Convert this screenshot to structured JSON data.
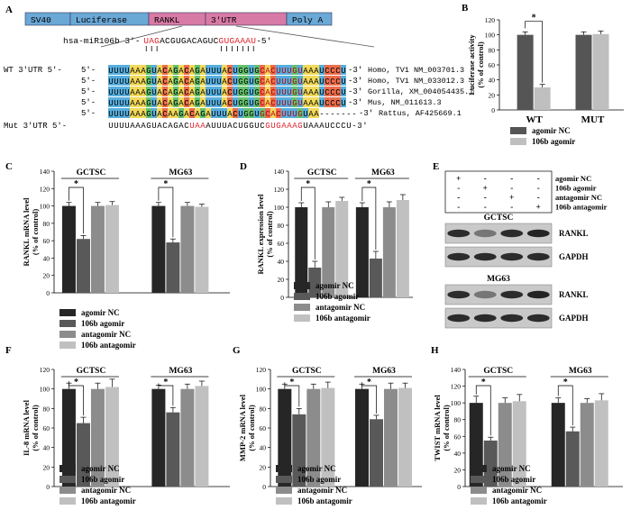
{
  "panels": {
    "A": "A",
    "B": "B",
    "C": "C",
    "D": "D",
    "E": "E",
    "F": "F",
    "G": "G",
    "H": "H"
  },
  "construct": {
    "segments": [
      {
        "label": "SV40",
        "color": "#6aa8d6"
      },
      {
        "label": "Luciferase",
        "color": "#6aa8d6"
      },
      {
        "label": "RANKL",
        "color": "#d87aa6"
      },
      {
        "label": "3'UTR",
        "color": "#d87aa6"
      },
      {
        "label": "Poly A",
        "color": "#6aa8d6"
      }
    ]
  },
  "mirna": {
    "prefix": "hsa-miR106b 3'-",
    "seq": "UAGACGUGACAGUCGUGAAAU",
    "suffix": "-5'"
  },
  "alignment": {
    "wt_label": "WT 3'UTR 5'-",
    "mut_label": "Mut 3'UTR 5'-",
    "rows": [
      {
        "prefix": "5'-",
        "seq": "UUUUAAAGUACAGACAGAUUUACUGGUGCACUUUGUAAAUCCCU",
        "end": "-3'",
        "species": "Homo, TV1 NM_003701.3"
      },
      {
        "prefix": "5'-",
        "seq": "UUUUAAAGUACAGACAGAUUUACUGGUGCACUUUGUAAAUCCCU",
        "end": "-3'",
        "species": "Homo, TV1 NM_033012.3"
      },
      {
        "prefix": "5'-",
        "seq": "UUUUAAAGUACAGACAGAUUUACUGGUGCACUUUGUAAAUCCCU",
        "end": "-3'",
        "species": "Gorilla, XM_004054435.1"
      },
      {
        "prefix": "5'-",
        "seq": "UUUUAAAGUACAGACAGAUUUACUGGUGCACUUUGUAAAUCCCU",
        "end": "-3'",
        "species": "Mus, NM_011613.3"
      },
      {
        "prefix": "5'-",
        "seq": "UUUUAAAGUACAAGACAGAUUUACUGGUGCACUUUGUAA-------",
        "end": "-3'",
        "species": "Rattus, AF425669.1"
      }
    ],
    "mut_seq": "UUUUAAAGUACAGACUAAAUUUACUGGUCGUGAAAGUAAAUCCCU-3'"
  },
  "chart_data": [
    {
      "panel": "B",
      "type": "bar",
      "ylabel": "Luciferase activity\n(% of control)",
      "ylim": [
        0,
        120
      ],
      "yticks": [
        0,
        20,
        40,
        60,
        80,
        100,
        120
      ],
      "groups": [
        "WT",
        "MUT"
      ],
      "series": [
        {
          "name": "agomir NC",
          "color": "#555555",
          "values": [
            100,
            100
          ],
          "errors": [
            4,
            4
          ]
        },
        {
          "name": "106b agomir",
          "color": "#bfbfbf",
          "values": [
            30,
            101
          ],
          "errors": [
            4,
            4
          ]
        }
      ],
      "significance": [
        {
          "group": 0,
          "label": "*"
        }
      ]
    },
    {
      "panel": "C",
      "type": "bar",
      "ylabel": "RANKL mRNA level\n(% of control)",
      "ylim": [
        0,
        140
      ],
      "yticks": [
        0,
        20,
        40,
        60,
        80,
        100,
        120,
        140
      ],
      "groups": [
        "GCTSC",
        "MG63"
      ],
      "series": [
        {
          "name": "agomir NC",
          "color": "#262626",
          "values": [
            100,
            100
          ],
          "errors": [
            4,
            4
          ]
        },
        {
          "name": "106b agomir",
          "color": "#595959",
          "values": [
            62,
            58
          ],
          "errors": [
            4,
            4
          ]
        },
        {
          "name": "antagomir NC",
          "color": "#8c8c8c",
          "values": [
            100,
            100
          ],
          "errors": [
            4,
            4
          ]
        },
        {
          "name": "106b antagomir",
          "color": "#c0c0c0",
          "values": [
            101,
            99
          ],
          "errors": [
            4,
            3
          ]
        }
      ],
      "significance": [
        {
          "group": 0,
          "label": "*"
        },
        {
          "group": 1,
          "label": "*"
        }
      ]
    },
    {
      "panel": "D",
      "type": "bar",
      "ylabel": "RANKL expression level\n(% of control)",
      "ylim": [
        0,
        140
      ],
      "yticks": [
        0,
        20,
        40,
        60,
        80,
        100,
        120,
        140
      ],
      "groups": [
        "GCTSC",
        "MG63"
      ],
      "series": [
        {
          "name": "agomir NC",
          "color": "#262626",
          "values": [
            100,
            100
          ],
          "errors": [
            5,
            5
          ]
        },
        {
          "name": "106b agomir",
          "color": "#595959",
          "values": [
            33,
            43
          ],
          "errors": [
            7,
            8
          ]
        },
        {
          "name": "antagomir NC",
          "color": "#8c8c8c",
          "values": [
            100,
            100
          ],
          "errors": [
            6,
            6
          ]
        },
        {
          "name": "106b antagomir",
          "color": "#c0c0c0",
          "values": [
            107,
            108
          ],
          "errors": [
            4,
            6
          ]
        }
      ],
      "significance": [
        {
          "group": 0,
          "label": "*"
        },
        {
          "group": 1,
          "label": "*"
        }
      ]
    },
    {
      "panel": "F",
      "type": "bar",
      "ylabel": "IL-8 mRNA level\n(% of control)",
      "ylim": [
        0,
        120
      ],
      "yticks": [
        0,
        20,
        40,
        60,
        80,
        100,
        120
      ],
      "groups": [
        "GCTSC",
        "MG63"
      ],
      "series": [
        {
          "name": "agomir NC",
          "color": "#262626",
          "values": [
            100,
            100
          ],
          "errors": [
            6,
            4
          ]
        },
        {
          "name": "106b agomir",
          "color": "#595959",
          "values": [
            65,
            76
          ],
          "errors": [
            6,
            5
          ]
        },
        {
          "name": "antagomir NC",
          "color": "#8c8c8c",
          "values": [
            100,
            100
          ],
          "errors": [
            6,
            5
          ]
        },
        {
          "name": "106b antagomir",
          "color": "#c0c0c0",
          "values": [
            102,
            103
          ],
          "errors": [
            8,
            5
          ]
        }
      ],
      "significance": [
        {
          "group": 0,
          "label": "*"
        },
        {
          "group": 1,
          "label": "*"
        }
      ]
    },
    {
      "panel": "G",
      "type": "bar",
      "ylabel": "MMP-2 mRNA level\n(% of control)",
      "ylim": [
        0,
        120
      ],
      "yticks": [
        0,
        20,
        40,
        60,
        80,
        100,
        120
      ],
      "groups": [
        "GCTSC",
        "MG63"
      ],
      "series": [
        {
          "name": "agomir NC",
          "color": "#262626",
          "values": [
            100,
            100
          ],
          "errors": [
            5,
            5
          ]
        },
        {
          "name": "106b agomir",
          "color": "#595959",
          "values": [
            74,
            69
          ],
          "errors": [
            6,
            4
          ]
        },
        {
          "name": "antagomir NC",
          "color": "#8c8c8c",
          "values": [
            100,
            100
          ],
          "errors": [
            5,
            6
          ]
        },
        {
          "name": "106b antagomir",
          "color": "#c0c0c0",
          "values": [
            101,
            101
          ],
          "errors": [
            6,
            5
          ]
        }
      ],
      "significance": [
        {
          "group": 0,
          "label": "*"
        },
        {
          "group": 1,
          "label": "*"
        }
      ]
    },
    {
      "panel": "H",
      "type": "bar",
      "ylabel": "TWIST mRNA level\n(% of control)",
      "ylim": [
        0,
        140
      ],
      "yticks": [
        0,
        20,
        40,
        60,
        80,
        100,
        120,
        140
      ],
      "groups": [
        "GCTSC",
        "MG63"
      ],
      "series": [
        {
          "name": "agomir NC",
          "color": "#262626",
          "values": [
            100,
            100
          ],
          "errors": [
            8,
            6
          ]
        },
        {
          "name": "106b agomir",
          "color": "#595959",
          "values": [
            55,
            66
          ],
          "errors": [
            4,
            5
          ]
        },
        {
          "name": "antagomir NC",
          "color": "#8c8c8c",
          "values": [
            100,
            100
          ],
          "errors": [
            6,
            5
          ]
        },
        {
          "name": "106b antagomir",
          "color": "#c0c0c0",
          "values": [
            102,
            103
          ],
          "errors": [
            8,
            8
          ]
        }
      ],
      "significance": [
        {
          "group": 0,
          "label": "*"
        },
        {
          "group": 1,
          "label": "*"
        }
      ]
    }
  ],
  "western": {
    "conditions": [
      "agomir NC",
      "106b agomir",
      "antagomir NC",
      "106b antagomir"
    ],
    "matrix": [
      [
        "+",
        "-",
        "-",
        "-"
      ],
      [
        "-",
        "+",
        "-",
        "-"
      ],
      [
        "-",
        "-",
        "+",
        "-"
      ],
      [
        "-",
        "-",
        "-",
        "+"
      ]
    ],
    "blocks": [
      {
        "cell": "GCTSC",
        "bands": [
          {
            "name": "RANKL",
            "intensity": [
              0.85,
              0.45,
              0.85,
              0.9
            ]
          },
          {
            "name": "GAPDH",
            "intensity": [
              0.85,
              0.85,
              0.85,
              0.85
            ]
          }
        ]
      },
      {
        "cell": "MG63",
        "bands": [
          {
            "name": "RANKL",
            "intensity": [
              0.85,
              0.45,
              0.85,
              0.9
            ]
          },
          {
            "name": "GAPDH",
            "intensity": [
              0.85,
              0.85,
              0.85,
              0.85
            ]
          }
        ]
      }
    ]
  }
}
